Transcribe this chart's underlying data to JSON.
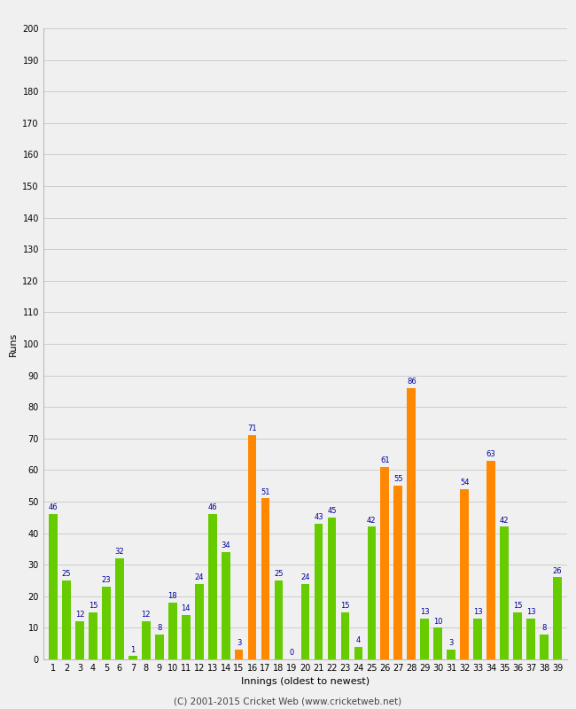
{
  "xlabel": "Innings (oldest to newest)",
  "ylabel": "Runs",
  "copyright": "(C) 2001-2015 Cricket Web (www.cricketweb.net)",
  "ylim": [
    0,
    200
  ],
  "yticks": [
    0,
    10,
    20,
    30,
    40,
    50,
    60,
    70,
    80,
    90,
    100,
    110,
    120,
    130,
    140,
    150,
    160,
    170,
    180,
    190,
    200
  ],
  "background_color": "#f0f0f0",
  "bars": [
    {
      "x": 1,
      "value": 46,
      "color": "#66cc00"
    },
    {
      "x": 2,
      "value": 25,
      "color": "#66cc00"
    },
    {
      "x": 3,
      "value": 12,
      "color": "#66cc00"
    },
    {
      "x": 4,
      "value": 15,
      "color": "#66cc00"
    },
    {
      "x": 5,
      "value": 23,
      "color": "#66cc00"
    },
    {
      "x": 6,
      "value": 32,
      "color": "#66cc00"
    },
    {
      "x": 7,
      "value": 1,
      "color": "#66cc00"
    },
    {
      "x": 8,
      "value": 12,
      "color": "#66cc00"
    },
    {
      "x": 9,
      "value": 8,
      "color": "#66cc00"
    },
    {
      "x": 10,
      "value": 18,
      "color": "#66cc00"
    },
    {
      "x": 11,
      "value": 14,
      "color": "#66cc00"
    },
    {
      "x": 12,
      "value": 24,
      "color": "#66cc00"
    },
    {
      "x": 13,
      "value": 46,
      "color": "#66cc00"
    },
    {
      "x": 14,
      "value": 34,
      "color": "#66cc00"
    },
    {
      "x": 15,
      "value": 3,
      "color": "#ff8800"
    },
    {
      "x": 16,
      "value": 71,
      "color": "#ff8800"
    },
    {
      "x": 17,
      "value": 51,
      "color": "#ff8800"
    },
    {
      "x": 18,
      "value": 25,
      "color": "#66cc00"
    },
    {
      "x": 19,
      "value": 0,
      "color": "#66cc00"
    },
    {
      "x": 20,
      "value": 24,
      "color": "#66cc00"
    },
    {
      "x": 21,
      "value": 43,
      "color": "#66cc00"
    },
    {
      "x": 22,
      "value": 45,
      "color": "#66cc00"
    },
    {
      "x": 23,
      "value": 15,
      "color": "#66cc00"
    },
    {
      "x": 24,
      "value": 4,
      "color": "#66cc00"
    },
    {
      "x": 25,
      "value": 42,
      "color": "#66cc00"
    },
    {
      "x": 26,
      "value": 61,
      "color": "#ff8800"
    },
    {
      "x": 27,
      "value": 55,
      "color": "#ff8800"
    },
    {
      "x": 28,
      "value": 86,
      "color": "#ff8800"
    },
    {
      "x": 29,
      "value": 13,
      "color": "#66cc00"
    },
    {
      "x": 30,
      "value": 10,
      "color": "#66cc00"
    },
    {
      "x": 31,
      "value": 3,
      "color": "#66cc00"
    },
    {
      "x": 32,
      "value": 54,
      "color": "#ff8800"
    },
    {
      "x": 33,
      "value": 13,
      "color": "#66cc00"
    },
    {
      "x": 34,
      "value": 63,
      "color": "#ff8800"
    },
    {
      "x": 35,
      "value": 42,
      "color": "#66cc00"
    },
    {
      "x": 36,
      "value": 15,
      "color": "#66cc00"
    },
    {
      "x": 37,
      "value": 13,
      "color": "#66cc00"
    },
    {
      "x": 38,
      "value": 8,
      "color": "#66cc00"
    },
    {
      "x": 39,
      "value": 26,
      "color": "#66cc00"
    }
  ],
  "innings_labels": [
    "1",
    "2",
    "3",
    "4",
    "5",
    "6",
    "7",
    "8",
    "9",
    "10",
    "11",
    "12",
    "13",
    "14",
    "15",
    "16",
    "17",
    "18",
    "19",
    "20",
    "21",
    "22",
    "23",
    "24",
    "25",
    "26",
    "27",
    "28",
    "29",
    "30",
    "31",
    "32",
    "33",
    "34",
    "35",
    "36",
    "37",
    "38",
    "39"
  ],
  "label_color": "#000099",
  "label_fontsize": 6.0,
  "bar_width": 0.65,
  "grid_color": "#cccccc",
  "tick_fontsize": 7,
  "axis_label_fontsize": 8,
  "copyright_fontsize": 7.5
}
